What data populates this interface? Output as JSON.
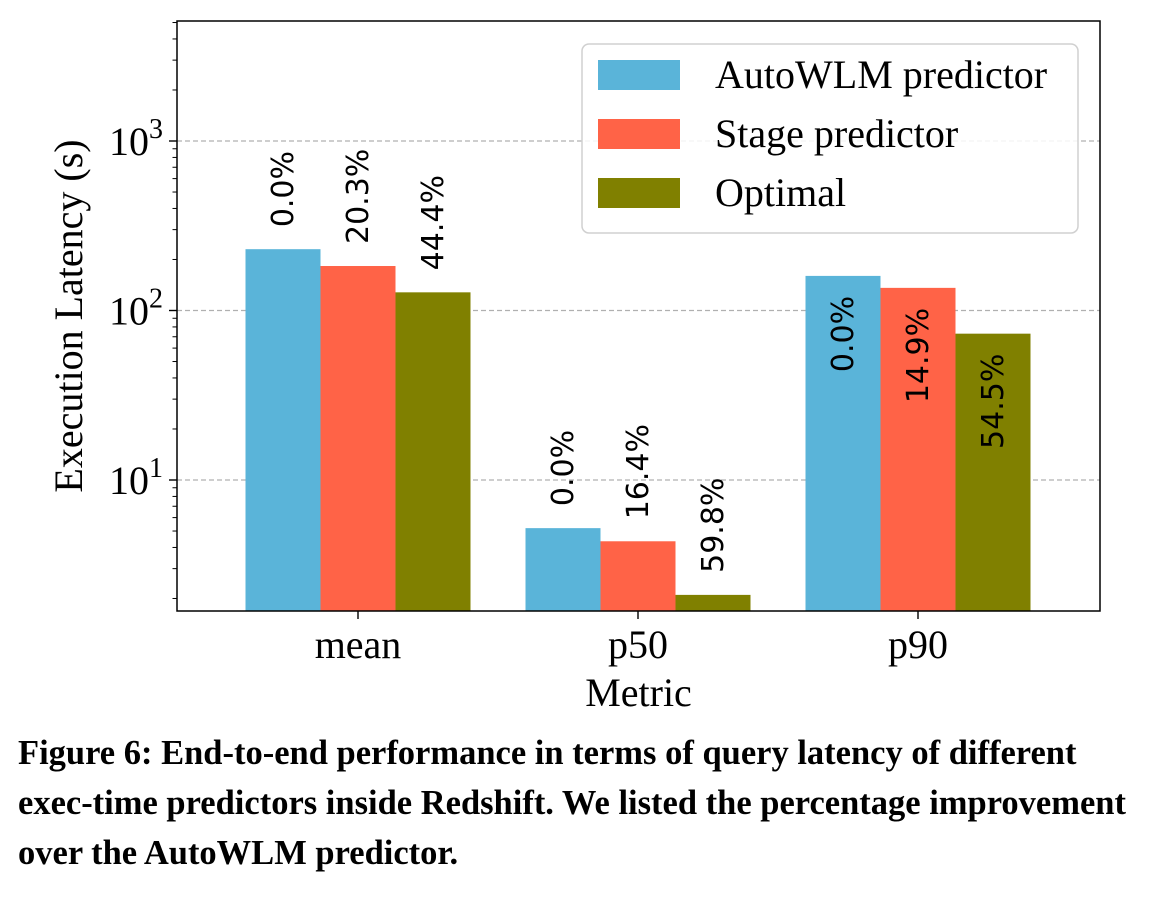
{
  "chart_data": {
    "type": "bar",
    "categories": [
      "mean",
      "p50",
      "p90"
    ],
    "series": [
      {
        "name": "AutoWLM predictor",
        "color": "#5ab4d9",
        "values": [
          230,
          5.2,
          160
        ],
        "labels": [
          "0.0%",
          "0.0%",
          "0.0%"
        ]
      },
      {
        "name": "Stage predictor",
        "color": "#ff6347",
        "values": [
          183,
          4.35,
          136
        ],
        "labels": [
          "20.3%",
          "16.4%",
          "14.9%"
        ]
      },
      {
        "name": "Optimal",
        "color": "#808000",
        "values": [
          128,
          2.1,
          73
        ],
        "labels": [
          "44.4%",
          "59.8%",
          "54.5%"
        ]
      }
    ],
    "xlabel": "Metric",
    "ylabel": "Execution Latency (s)",
    "yscale": "log",
    "ylim": [
      1.7,
      5000
    ],
    "yticks": [
      {
        "base": "10",
        "exp": "1",
        "value": 10
      },
      {
        "base": "10",
        "exp": "2",
        "value": 100
      },
      {
        "base": "10",
        "exp": "3",
        "value": 1000
      }
    ],
    "grid": "horizontal-dashed",
    "legend_position": "top-right"
  },
  "caption": {
    "text": "Figure 6: End-to-end performance in terms of query latency of different exec-time predictors inside Redshift. We listed the percentage improvement over the AutoWLM predictor."
  }
}
